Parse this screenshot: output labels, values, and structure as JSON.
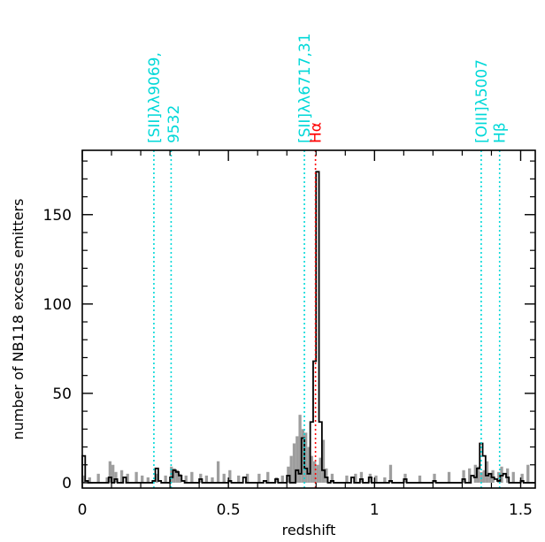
{
  "chart_data": {
    "type": "bar",
    "xlabel": "redshift",
    "ylabel": "number of NB118 excess emitters",
    "xlim": [
      0,
      1.55
    ],
    "ylim": [
      -3,
      186
    ],
    "x_ticks": [
      0,
      0.5,
      1,
      1.5
    ],
    "x_tick_labels": [
      "0",
      "0.5",
      "1",
      "1.5"
    ],
    "y_ticks": [
      0,
      50,
      100,
      150
    ],
    "y_tick_labels": [
      "0",
      "50",
      "100",
      "150"
    ],
    "grid": false,
    "bin_width": 0.01,
    "series": [
      {
        "style": "grey-filled-histogram",
        "color": "#9e9e9e",
        "x": [
          0.0,
          0.02,
          0.05,
          0.08,
          0.09,
          0.1,
          0.11,
          0.13,
          0.15,
          0.18,
          0.2,
          0.22,
          0.25,
          0.28,
          0.3,
          0.31,
          0.32,
          0.33,
          0.35,
          0.37,
          0.4,
          0.42,
          0.44,
          0.46,
          0.48,
          0.5,
          0.53,
          0.56,
          0.6,
          0.63,
          0.66,
          0.68,
          0.7,
          0.71,
          0.72,
          0.73,
          0.74,
          0.75,
          0.76,
          0.77,
          0.78,
          0.79,
          0.8,
          0.81,
          0.82,
          0.83,
          0.85,
          0.9,
          0.93,
          0.95,
          0.98,
          1.0,
          1.03,
          1.05,
          1.1,
          1.15,
          1.2,
          1.25,
          1.3,
          1.32,
          1.34,
          1.35,
          1.36,
          1.37,
          1.38,
          1.39,
          1.4,
          1.42,
          1.43,
          1.45,
          1.47,
          1.5,
          1.52
        ],
        "values": [
          4,
          3,
          5,
          3,
          12,
          10,
          6,
          7,
          5,
          6,
          4,
          3,
          5,
          4,
          9,
          8,
          7,
          5,
          4,
          6,
          5,
          4,
          3,
          12,
          5,
          7,
          4,
          5,
          5,
          6,
          3,
          4,
          9,
          15,
          22,
          26,
          38,
          30,
          28,
          20,
          15,
          12,
          10,
          14,
          24,
          8,
          5,
          4,
          5,
          6,
          5,
          4,
          3,
          10,
          5,
          4,
          5,
          6,
          7,
          8,
          10,
          9,
          6,
          7,
          12,
          5,
          7,
          6,
          9,
          8,
          6,
          5,
          10
        ]
      },
      {
        "style": "black-step-histogram",
        "color": "#000000",
        "x": [
          0.0,
          0.01,
          0.09,
          0.11,
          0.14,
          0.24,
          0.25,
          0.26,
          0.3,
          0.31,
          0.32,
          0.33,
          0.34,
          0.4,
          0.5,
          0.55,
          0.62,
          0.66,
          0.7,
          0.73,
          0.74,
          0.75,
          0.76,
          0.77,
          0.78,
          0.79,
          0.8,
          0.81,
          0.82,
          0.83,
          0.85,
          0.92,
          0.95,
          0.98,
          1.05,
          1.1,
          1.2,
          1.3,
          1.33,
          1.34,
          1.35,
          1.36,
          1.37,
          1.38,
          1.39,
          1.4,
          1.41,
          1.42,
          1.43,
          1.44,
          1.45,
          1.5
        ],
        "values": [
          15,
          1,
          3,
          2,
          3,
          1,
          8,
          1,
          3,
          7,
          6,
          4,
          1,
          2,
          1,
          3,
          1,
          2,
          4,
          7,
          5,
          25,
          8,
          5,
          34,
          68,
          174,
          34,
          7,
          3,
          1,
          3,
          2,
          3,
          1,
          2,
          1,
          2,
          4,
          3,
          8,
          22,
          15,
          4,
          5,
          3,
          2,
          1,
          4,
          5,
          3,
          1
        ]
      }
    ],
    "annotations": [
      {
        "text": "[SII]λλ9069,",
        "text2": "9532",
        "x": [
          0.245,
          0.304
        ],
        "color": "#00d8d8"
      },
      {
        "text": "[SII]λλ6717,31",
        "x": [
          0.76
        ],
        "color": "#00d8d8"
      },
      {
        "text": "Hα",
        "x": [
          0.798
        ],
        "color": "#ff0000"
      },
      {
        "text": "[OIII]λ5007",
        "x": [
          1.365
        ],
        "color": "#00d8d8"
      },
      {
        "text": "Hβ",
        "x": [
          1.428
        ],
        "color": "#00d8d8"
      }
    ]
  }
}
